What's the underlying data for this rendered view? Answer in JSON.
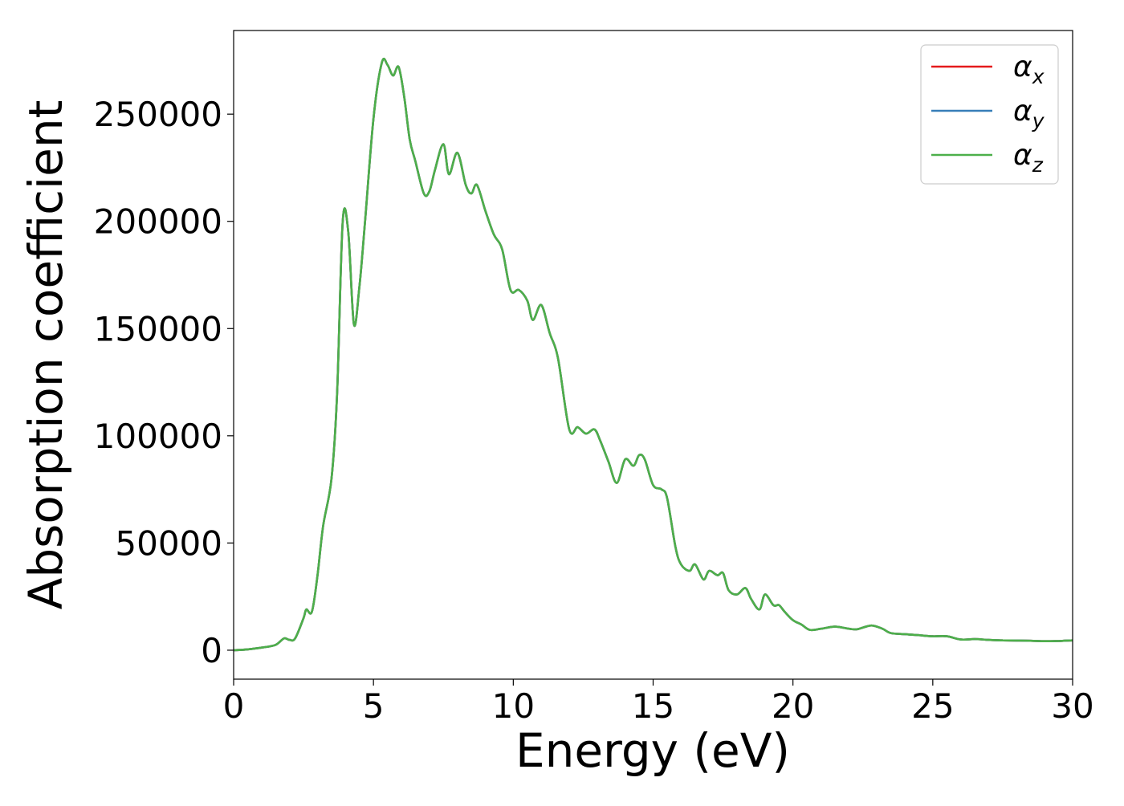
{
  "chart_data": {
    "type": "line",
    "title": "",
    "xlabel": "Energy (eV)",
    "ylabel": "Absorption coefficient",
    "xlim": [
      0,
      30
    ],
    "ylim": [
      -13500,
      289000
    ],
    "xticks": [
      0,
      5,
      10,
      15,
      20,
      25,
      30
    ],
    "xtick_labels": [
      "0",
      "5",
      "10",
      "15",
      "20",
      "25",
      "30"
    ],
    "yticks": [
      0,
      50000,
      100000,
      150000,
      200000,
      250000
    ],
    "ytick_labels": [
      "0",
      "50000",
      "100000",
      "150000",
      "200000",
      "250000"
    ],
    "grid": false,
    "legend_position": "top-right",
    "x": [
      0,
      0.5,
      1.0,
      1.5,
      1.8,
      2.0,
      2.2,
      2.5,
      2.6,
      2.8,
      3.0,
      3.2,
      3.5,
      3.7,
      3.9,
      4.1,
      4.3,
      4.5,
      4.7,
      5.0,
      5.3,
      5.5,
      5.7,
      5.9,
      6.1,
      6.3,
      6.5,
      6.8,
      7.0,
      7.2,
      7.5,
      7.7,
      8.0,
      8.3,
      8.5,
      8.7,
      9.0,
      9.3,
      9.6,
      9.9,
      10.2,
      10.5,
      10.7,
      11.0,
      11.3,
      11.6,
      12.0,
      12.3,
      12.6,
      12.9,
      13.1,
      13.4,
      13.7,
      14.0,
      14.3,
      14.5,
      14.7,
      15.0,
      15.3,
      15.5,
      15.8,
      16.0,
      16.3,
      16.5,
      16.8,
      17.0,
      17.3,
      17.5,
      17.7,
      18.0,
      18.3,
      18.5,
      18.8,
      19.0,
      19.3,
      19.5,
      19.7,
      20.0,
      20.3,
      20.6,
      21.0,
      21.5,
      22.0,
      22.3,
      22.8,
      23.2,
      23.5,
      24.0,
      24.5,
      25.0,
      25.5,
      26.0,
      26.5,
      27.0,
      27.5,
      28.0,
      28.5,
      29.0,
      29.5,
      30.0
    ],
    "series": [
      {
        "name": "α",
        "name_sub": "x",
        "color": "#e41a1c",
        "values": [
          0,
          400,
          1200,
          2500,
          5500,
          4800,
          5500,
          15000,
          19000,
          18000,
          35000,
          58000,
          80000,
          120000,
          200000,
          195000,
          152000,
          170000,
          200000,
          248000,
          274000,
          273000,
          268000,
          272000,
          258000,
          238000,
          228000,
          213000,
          214000,
          224000,
          236000,
          222000,
          232000,
          217000,
          213000,
          217000,
          205000,
          194000,
          187000,
          168000,
          168000,
          163000,
          154000,
          161000,
          148000,
          136000,
          103000,
          104000,
          101000,
          103000,
          98000,
          88000,
          78000,
          89000,
          86000,
          91000,
          89000,
          77000,
          75000,
          71000,
          48000,
          40000,
          37000,
          40000,
          33000,
          37000,
          35000,
          36000,
          28000,
          26000,
          29000,
          24000,
          19000,
          26000,
          21000,
          21000,
          18000,
          14000,
          12000,
          9500,
          10000,
          11000,
          10000,
          9800,
          11500,
          10000,
          8000,
          7500,
          7000,
          6500,
          6500,
          5000,
          5200,
          4800,
          4600,
          4500,
          4400,
          4200,
          4300,
          4600
        ]
      },
      {
        "name": "α",
        "name_sub": "y",
        "color": "#377eb8",
        "values": [
          0,
          400,
          1200,
          2500,
          5500,
          4800,
          5500,
          15000,
          19000,
          18000,
          35000,
          58000,
          80000,
          120000,
          200000,
          195000,
          152000,
          170000,
          200000,
          248000,
          274000,
          273000,
          268000,
          272000,
          258000,
          238000,
          228000,
          213000,
          214000,
          224000,
          236000,
          222000,
          232000,
          217000,
          213000,
          217000,
          205000,
          194000,
          187000,
          168000,
          168000,
          163000,
          154000,
          161000,
          148000,
          136000,
          103000,
          104000,
          101000,
          103000,
          98000,
          88000,
          78000,
          89000,
          86000,
          91000,
          89000,
          77000,
          75000,
          71000,
          48000,
          40000,
          37000,
          40000,
          33000,
          37000,
          35000,
          36000,
          28000,
          26000,
          29000,
          24000,
          19000,
          26000,
          21000,
          21000,
          18000,
          14000,
          12000,
          9500,
          10000,
          11000,
          10000,
          9800,
          11500,
          10000,
          8000,
          7500,
          7000,
          6500,
          6500,
          5000,
          5200,
          4800,
          4600,
          4500,
          4400,
          4200,
          4300,
          4600
        ]
      },
      {
        "name": "α",
        "name_sub": "z",
        "color": "#4daf4a",
        "values": [
          0,
          400,
          1200,
          2500,
          5500,
          4800,
          5500,
          15000,
          19000,
          18000,
          35000,
          58000,
          80000,
          120000,
          200000,
          195000,
          152000,
          170000,
          200000,
          248000,
          274000,
          273000,
          268000,
          272000,
          258000,
          238000,
          228000,
          213000,
          214000,
          224000,
          236000,
          222000,
          232000,
          217000,
          213000,
          217000,
          205000,
          194000,
          187000,
          168000,
          168000,
          163000,
          154000,
          161000,
          148000,
          136000,
          103000,
          104000,
          101000,
          103000,
          98000,
          88000,
          78000,
          89000,
          86000,
          91000,
          89000,
          77000,
          75000,
          71000,
          48000,
          40000,
          37000,
          40000,
          33000,
          37000,
          35000,
          36000,
          28000,
          26000,
          29000,
          24000,
          19000,
          26000,
          21000,
          21000,
          18000,
          14000,
          12000,
          9500,
          10000,
          11000,
          10000,
          9800,
          11500,
          10000,
          8000,
          7500,
          7000,
          6500,
          6500,
          5000,
          5200,
          4800,
          4600,
          4500,
          4400,
          4200,
          4300,
          4600
        ]
      }
    ]
  }
}
